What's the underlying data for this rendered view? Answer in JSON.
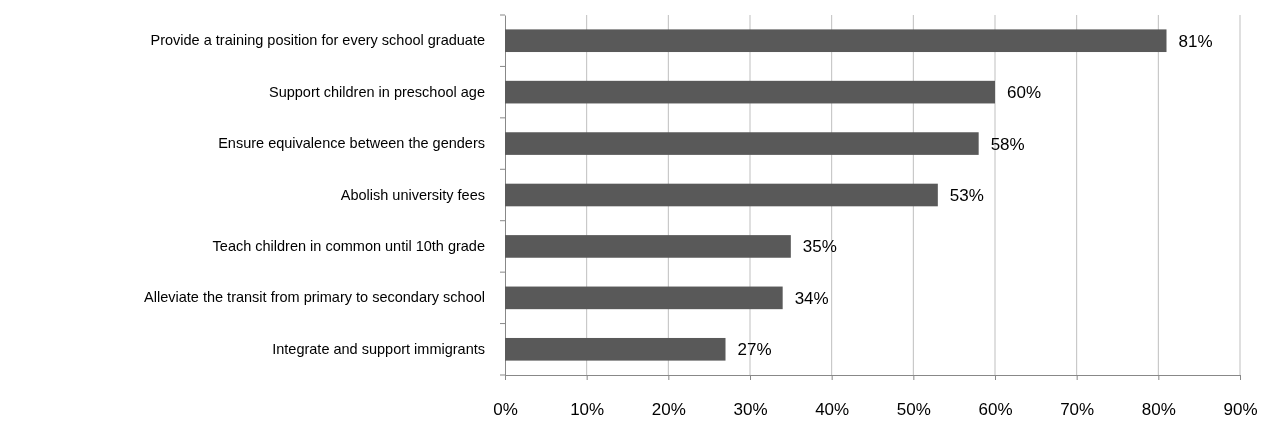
{
  "chart_data": {
    "type": "bar",
    "orientation": "horizontal",
    "categories": [
      "Provide a training position for every school graduate",
      "Support children in preschool age",
      "Ensure equivalence between the genders",
      "Abolish university fees",
      "Teach children in common until 10th grade",
      "Alleviate the transit from primary to secondary school",
      "Integrate and support immigrants"
    ],
    "values": [
      81,
      60,
      58,
      53,
      35,
      34,
      27
    ],
    "value_labels": [
      "81%",
      "60%",
      "58%",
      "53%",
      "35%",
      "34%",
      "27%"
    ],
    "color": "#595959",
    "xlim": [
      0,
      90
    ],
    "xticks": [
      {
        "value": 0,
        "label": "0%"
      },
      {
        "value": 10,
        "label": "10%"
      },
      {
        "value": 20,
        "label": "20%"
      },
      {
        "value": 30,
        "label": "30%"
      },
      {
        "value": 40,
        "label": "40%"
      },
      {
        "value": 50,
        "label": "50%"
      },
      {
        "value": 60,
        "label": "60%"
      },
      {
        "value": 70,
        "label": "70%"
      },
      {
        "value": 80,
        "label": "80%"
      },
      {
        "value": 90,
        "label": "90%"
      }
    ],
    "grid": "x"
  }
}
